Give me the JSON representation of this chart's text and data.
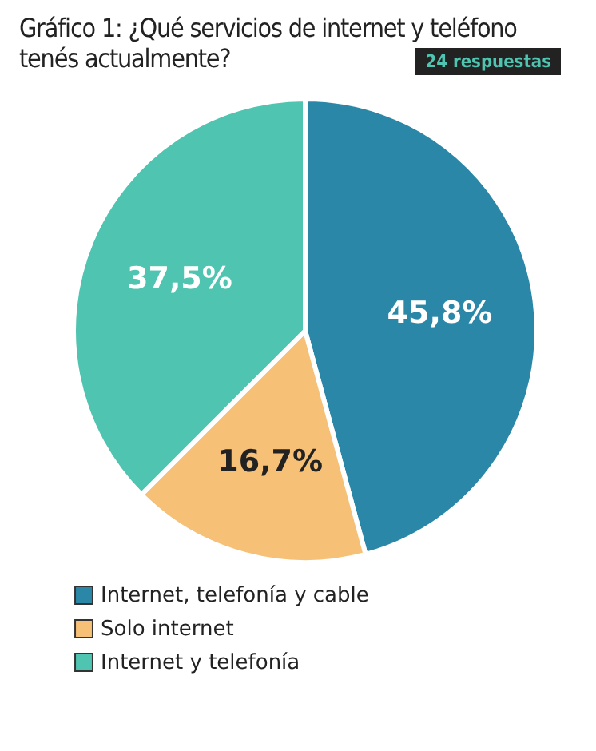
{
  "chart_data": {
    "type": "pie",
    "title": "Gráfico 1: ¿Qué servicios de internet y teléfono tenés actualmente?",
    "subtitle": "24 respuestas",
    "categories": [
      "Internet, telefonía y cable",
      "Solo internet",
      "Internet y telefonía"
    ],
    "values": [
      45.8,
      16.7,
      37.5
    ],
    "colors": [
      "#2b87a8",
      "#f7c077",
      "#4fc4b0"
    ],
    "value_labels": [
      "45,8%",
      "16,7%",
      "37,5%"
    ],
    "legend": "bottom"
  }
}
